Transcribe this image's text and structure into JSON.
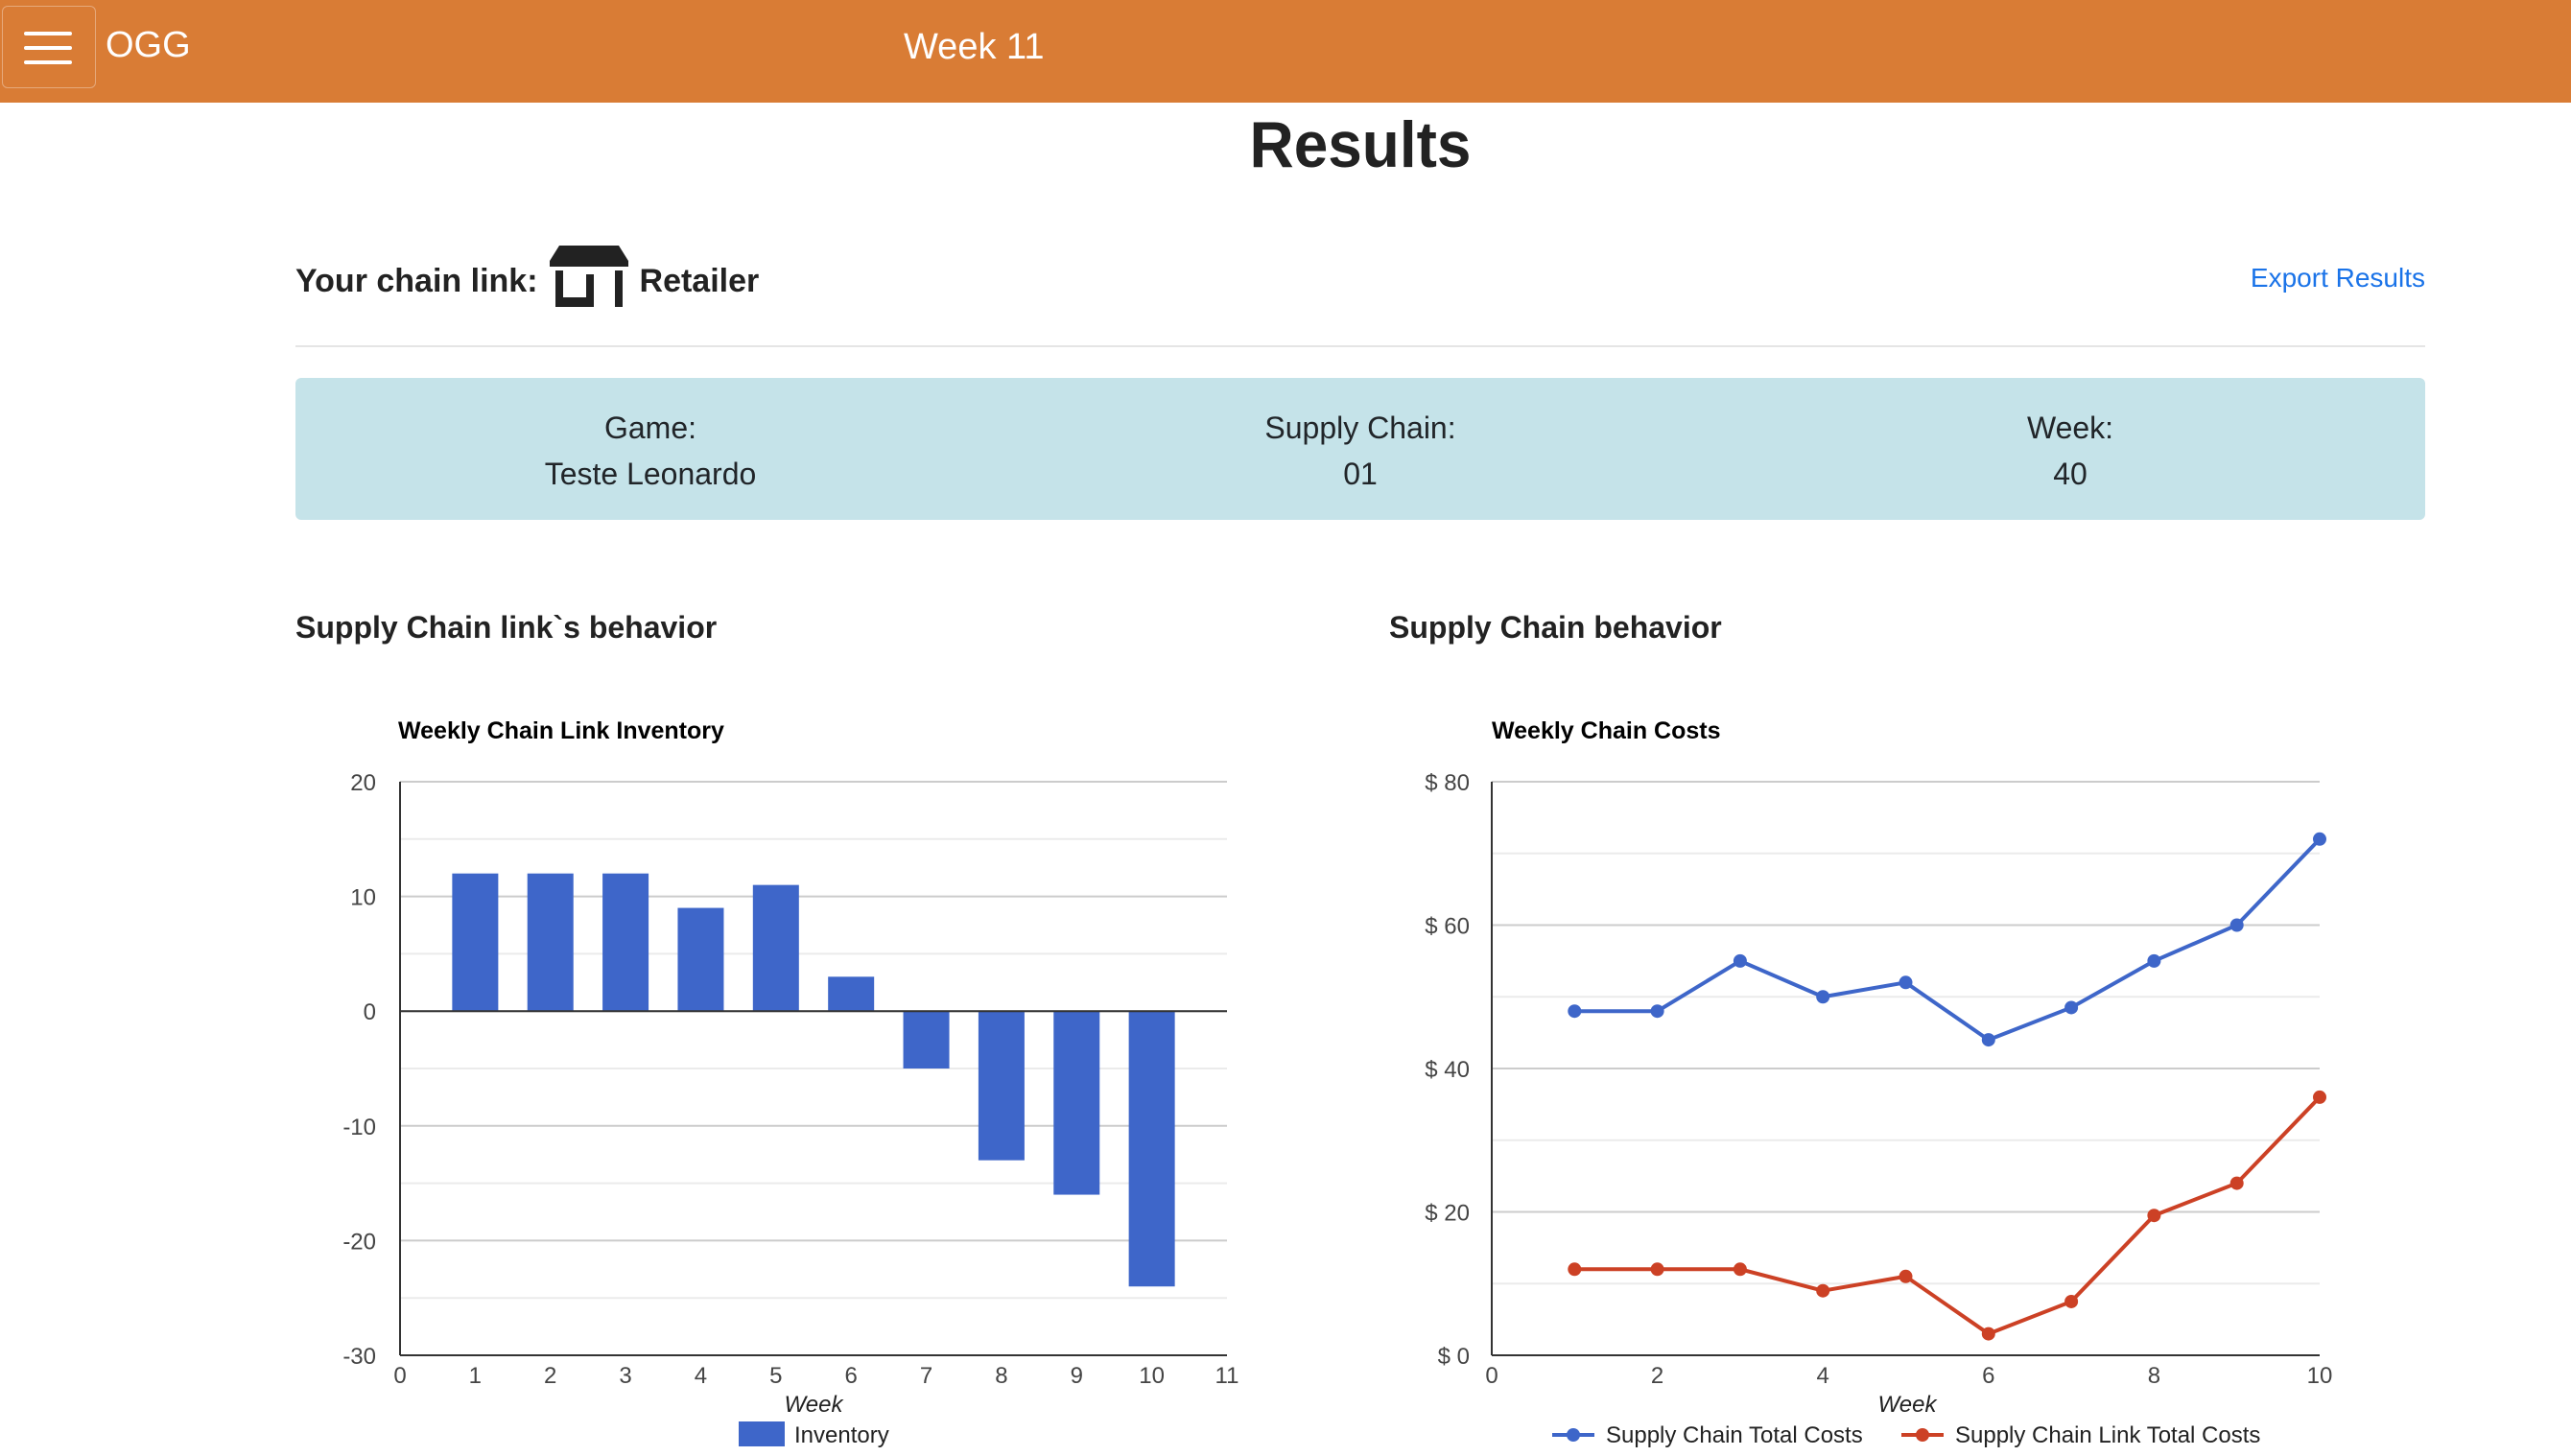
{
  "header": {
    "brand": "OGG",
    "week_label": "Week 11"
  },
  "page": {
    "title": "Results"
  },
  "chain_link": {
    "prefix": "Your chain link:",
    "role": "Retailer"
  },
  "export": {
    "label": "Export Results"
  },
  "info": {
    "game_label": "Game:",
    "game_value": "Teste Leonardo",
    "supply_chain_label": "Supply Chain:",
    "supply_chain_value": "01",
    "week_label": "Week:",
    "week_value": "40"
  },
  "sections": {
    "left": "Supply Chain link`s behavior",
    "right": "Supply Chain behavior"
  },
  "colors": {
    "header": "#d97c35",
    "info_bg": "#c5e3e9",
    "blue": "#3e66c9",
    "red": "#cc4125",
    "link": "#1a73e8"
  },
  "chart_data": [
    {
      "type": "bar",
      "title": "Weekly Chain Link Inventory",
      "xlabel": "Week",
      "ylabel": "",
      "x": [
        1,
        2,
        3,
        4,
        5,
        6,
        7,
        8,
        9,
        10
      ],
      "xticks": [
        0,
        1,
        2,
        3,
        4,
        5,
        6,
        7,
        8,
        9,
        10,
        11
      ],
      "yticks": [
        20,
        10,
        0,
        -10,
        -20,
        -30
      ],
      "xlim": [
        0,
        11
      ],
      "ylim": [
        -30,
        20
      ],
      "series": [
        {
          "name": "Inventory",
          "color": "#3e66c9",
          "values": [
            12,
            12,
            12,
            9,
            11,
            3,
            -5,
            -13,
            -16,
            -24
          ]
        }
      ],
      "legend": "bottom",
      "grid": true
    },
    {
      "type": "line",
      "title": "Weekly Chain Costs",
      "xlabel": "Week",
      "ylabel": "",
      "x": [
        1,
        2,
        3,
        4,
        5,
        6,
        7,
        8,
        9,
        10
      ],
      "xticks": [
        0,
        2,
        4,
        6,
        8,
        10
      ],
      "yticks": [
        "$ 80",
        "$ 60",
        "$ 40",
        "$ 20",
        "$ 0"
      ],
      "xlim": [
        0,
        10
      ],
      "ylim": [
        0,
        80
      ],
      "series": [
        {
          "name": "Supply Chain Total Costs",
          "color": "#3e66c9",
          "values": [
            48,
            48,
            55,
            50,
            52,
            44,
            48.5,
            55,
            60,
            72
          ]
        },
        {
          "name": "Supply Chain Link Total Costs",
          "color": "#cc4125",
          "values": [
            12,
            12,
            12,
            9,
            11,
            3,
            7.5,
            19.5,
            24,
            36
          ]
        }
      ],
      "legend": "bottom",
      "grid": true
    }
  ]
}
